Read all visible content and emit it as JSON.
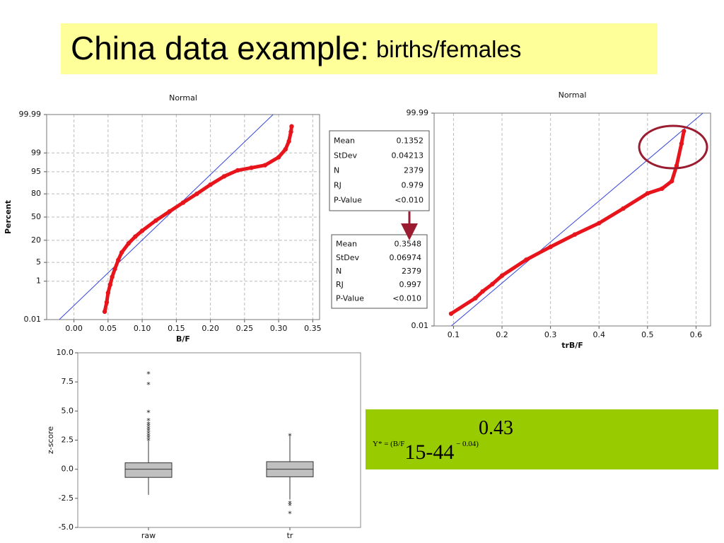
{
  "title": {
    "main": "China data example:",
    "sub": "births/females"
  },
  "formula": {
    "lhs": "Y* = (B/F",
    "subscript": "15-44",
    "rest": " − 0.04)",
    "exponent": "0.43"
  },
  "chart_data": [
    {
      "type": "probability",
      "title": "Normal",
      "x_label": "B/F",
      "y_label": "Percent",
      "xlim": [
        -0.04,
        0.36
      ],
      "xticks": [
        {
          "value": 0,
          "label": "0.00"
        },
        0.05,
        {
          "value": 0.1,
          "label": "0.10"
        },
        0.15,
        {
          "value": 0.2,
          "label": "0.20"
        },
        0.25,
        {
          "value": 0.3,
          "label": "0.30"
        },
        0.35
      ],
      "ylim": [
        0.01,
        99.99
      ],
      "yticks": [
        0.01,
        1,
        5,
        20,
        50,
        80,
        95,
        99,
        99.99
      ],
      "grid": true,
      "color": "#e8141b",
      "line_color": "#3344dd",
      "x": [
        0.045,
        0.048,
        0.05,
        0.053,
        0.056,
        0.06,
        0.065,
        0.07,
        0.08,
        0.09,
        0.1,
        0.12,
        0.14,
        0.16,
        0.18,
        0.2,
        0.22,
        0.24,
        0.26,
        0.28,
        0.3,
        0.31,
        0.315,
        0.318,
        0.319
      ],
      "values": [
        0.03,
        0.1,
        0.3,
        0.7,
        1.5,
        3,
        6,
        10,
        17,
        24,
        31,
        45,
        58,
        70,
        80,
        88,
        93,
        95.5,
        96.3,
        97,
        98.5,
        99.3,
        99.7,
        99.9,
        99.95
      ],
      "stats": {
        "labels": [
          "Mean",
          "StDev",
          "N",
          "RJ",
          "P-Value"
        ],
        "values": [
          0.1352,
          0.04213,
          2379,
          0.979,
          "<0.010"
        ]
      }
    },
    {
      "type": "probability",
      "title": "Normal",
      "x_label": "trB/F",
      "xlim": [
        0.06,
        0.63
      ],
      "xticks": [
        0.1,
        0.2,
        0.3,
        0.4,
        0.5,
        0.6
      ],
      "ylim": [
        0.01,
        99.99
      ],
      "yticks": [
        0.01,
        99.99
      ],
      "grid": true,
      "color": "#e8141b",
      "line_color": "#3344dd",
      "x": [
        0.095,
        0.145,
        0.16,
        0.18,
        0.2,
        0.25,
        0.3,
        0.35,
        0.4,
        0.45,
        0.5,
        0.53,
        0.55,
        0.56,
        0.57,
        0.575
      ],
      "values": [
        0.05,
        0.3,
        0.6,
        1.2,
        2.5,
        8,
        17,
        30,
        45,
        65,
        82,
        86,
        91,
        97,
        99.6,
        99.9
      ],
      "stats": {
        "labels": [
          "Mean",
          "StDev",
          "N",
          "RJ",
          "P-Value"
        ],
        "values": [
          0.3548,
          0.06974,
          2379,
          0.997,
          "<0.010"
        ]
      }
    },
    {
      "type": "box",
      "y_label": "z-score",
      "categories": [
        "raw",
        "tr"
      ],
      "ylim": [
        -5,
        10
      ],
      "yticks": [
        {
          "value": -5,
          "label": "-5.0"
        },
        -2.5,
        {
          "value": 0,
          "label": "0.0"
        },
        2.5,
        {
          "value": 5,
          "label": "5.0"
        },
        7.5,
        {
          "value": 10,
          "label": "10.0"
        }
      ],
      "color": "#c0c0c0",
      "boxes": [
        {
          "min": -2.2,
          "q1": -0.7,
          "median": 0,
          "q3": 0.55,
          "max": 2.5,
          "outliers": [
            2.6,
            2.8,
            3.0,
            3.2,
            3.4,
            3.6,
            3.8,
            4.0,
            4.3,
            5.0,
            7.4,
            8.3
          ]
        },
        {
          "min": -2.6,
          "q1": -0.65,
          "median": 0,
          "q3": 0.65,
          "max": 2.9,
          "outliers": [
            3.0,
            -2.8,
            -3.0,
            -3.7
          ]
        }
      ]
    }
  ]
}
